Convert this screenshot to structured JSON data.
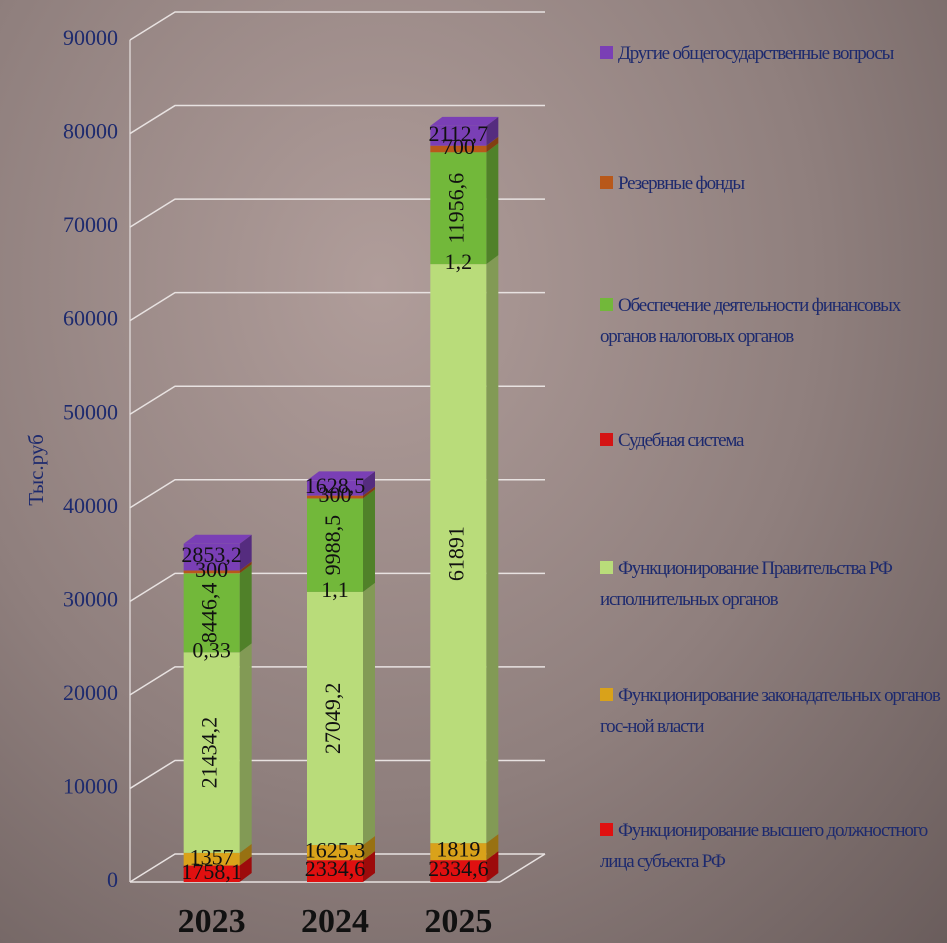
{
  "chart_data": {
    "type": "bar",
    "stacked": true,
    "y_label": "Тыс.руб",
    "categories": [
      "2023",
      "2024",
      "2025"
    ],
    "ylim": [
      0,
      90000
    ],
    "yticks": [
      0,
      10000,
      20000,
      30000,
      40000,
      50000,
      60000,
      70000,
      80000,
      90000
    ],
    "grid": true,
    "legend": "right",
    "series": [
      {
        "name": "Функционирование высшего должностного лица субъекта РФ",
        "color": "#e01010",
        "values": [
          1758.1,
          2334.6,
          2334.6
        ],
        "value_labels": [
          "1758,1",
          "2334,6",
          "2334,6"
        ]
      },
      {
        "name": "Функционирование законадательных органов  гос-ной власти",
        "color": "#d9a21a",
        "values": [
          1357,
          1625.3,
          1819
        ],
        "value_labels": [
          "1357",
          "1625,3",
          "1819"
        ]
      },
      {
        "name": "Функционирование Правительства РФ исполнительных органов",
        "color": "#b9dc7a",
        "values": [
          21434.2,
          27049.2,
          61891
        ],
        "value_labels": [
          "21434,2",
          "27049,2",
          "61891"
        ]
      },
      {
        "name": "Судебная система",
        "color": "#d41414",
        "values": [
          0.33,
          1.1,
          1.2
        ],
        "value_labels": [
          "0,33",
          "1,1",
          "1,2"
        ]
      },
      {
        "name": "Обеспечение деятельности финансовых органов налоговых органов",
        "color": "#72b83a",
        "values": [
          8446.4,
          9988.5,
          11956.6
        ],
        "value_labels": [
          "8446,4",
          "9988,5",
          "11956,6"
        ]
      },
      {
        "name": "Резервные фонды",
        "color": "#b8581a",
        "values": [
          300,
          300,
          700
        ],
        "value_labels": [
          "300",
          "300",
          "700"
        ]
      },
      {
        "name": "Другие общегосударственные вопросы",
        "color": "#7a3fb5",
        "values": [
          2853.2,
          1628.5,
          2112.7
        ],
        "value_labels": [
          "2853,2",
          "1628,5",
          "2112,7"
        ]
      }
    ]
  }
}
